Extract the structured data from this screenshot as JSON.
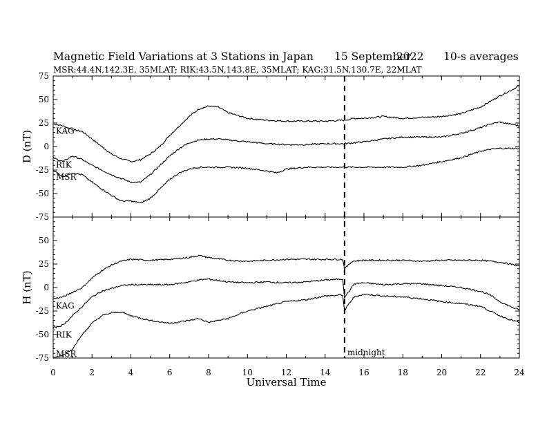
{
  "header": {
    "title": "Magnetic Field Variations at 3 Stations in Japan",
    "date": "15 September",
    "year": "2022",
    "averaging": "10-s averages",
    "stations_line": "MSR:44.4N,142.3E, 35MLAT;  RIK:43.5N,143.8E, 35MLAT;  KAG:31.5N,130.7E, 22MLAT"
  },
  "chart_data": [
    {
      "type": "line",
      "panel": "top",
      "ylabel": "D (nT)",
      "ylim": [
        -75,
        75
      ],
      "yticks": [
        -75,
        -50,
        -25,
        0,
        25,
        50,
        75
      ],
      "xlim": [
        0,
        24
      ],
      "series": [
        {
          "name": "KAG",
          "color": "#000000",
          "x": [
            0,
            0.5,
            1,
            1.5,
            2,
            2.5,
            3,
            3.5,
            4,
            4.5,
            5,
            5.5,
            6,
            6.5,
            7,
            7.5,
            8,
            8.5,
            9,
            9.5,
            10,
            11,
            12,
            13,
            14,
            15,
            15.5,
            16,
            17,
            18,
            19,
            20,
            21,
            22,
            22.5,
            23,
            23.5,
            24
          ],
          "y": [
            24,
            22,
            18,
            16,
            8,
            0,
            -8,
            -13,
            -16,
            -14,
            -8,
            0,
            12,
            22,
            32,
            40,
            43,
            42,
            36,
            33,
            30,
            28,
            27,
            27,
            27,
            28,
            30,
            30,
            32,
            30,
            31,
            32,
            35,
            42,
            48,
            54,
            59,
            65
          ]
        },
        {
          "name": "RIK",
          "color": "#000000",
          "x": [
            0,
            0.5,
            1,
            1.5,
            2,
            2.5,
            3,
            3.5,
            4,
            4.5,
            5,
            5.5,
            6,
            6.5,
            7,
            7.5,
            8,
            8.5,
            9,
            10,
            11,
            12,
            13,
            14,
            15,
            16,
            17,
            18,
            19,
            20,
            21,
            22,
            22.5,
            23,
            23.5,
            24
          ],
          "y": [
            -12,
            -16,
            -10,
            -14,
            -20,
            -25,
            -30,
            -34,
            -38,
            -38,
            -30,
            -20,
            -10,
            -2,
            4,
            7,
            8,
            8,
            7,
            5,
            3,
            2,
            2,
            3,
            3,
            5,
            8,
            10,
            10,
            10,
            14,
            20,
            24,
            26,
            24,
            22
          ]
        },
        {
          "name": "MSR",
          "color": "#000000",
          "x": [
            0,
            0.5,
            1,
            1.5,
            2,
            2.5,
            3,
            3.5,
            4,
            4.5,
            5,
            5.5,
            6,
            6.5,
            7,
            7.5,
            8,
            8.5,
            9,
            10,
            11,
            11.5,
            12,
            13,
            14,
            15,
            16,
            17,
            18,
            19,
            20,
            21,
            22,
            22.5,
            23,
            23.5,
            24
          ],
          "y": [
            -25,
            -32,
            -28,
            -30,
            -38,
            -45,
            -52,
            -58,
            -58,
            -60,
            -55,
            -45,
            -35,
            -28,
            -24,
            -22,
            -22,
            -22,
            -22,
            -23,
            -26,
            -28,
            -24,
            -22,
            -22,
            -22,
            -22,
            -22,
            -22,
            -20,
            -16,
            -12,
            -5,
            -3,
            -2,
            -2,
            -2
          ]
        }
      ]
    },
    {
      "type": "line",
      "panel": "bottom",
      "ylabel": "H (nT)",
      "xlabel": "Universal Time",
      "ylim": [
        -75,
        75
      ],
      "yticks": [
        -75,
        -50,
        -25,
        0,
        25,
        50
      ],
      "xlim": [
        0,
        24
      ],
      "xticks": [
        0,
        2,
        4,
        6,
        8,
        10,
        12,
        14,
        16,
        18,
        20,
        22,
        24
      ],
      "vline": {
        "x": 15,
        "label": "midnight"
      },
      "series": [
        {
          "name": "KAG",
          "color": "#000000",
          "x": [
            0,
            0.5,
            1,
            1.5,
            2,
            2.5,
            3,
            3.5,
            4,
            5,
            6,
            7,
            7.5,
            8,
            9,
            10,
            11,
            12,
            13,
            14,
            14.9,
            15,
            15.2,
            15.4,
            16,
            17,
            18,
            19,
            20,
            21,
            22,
            22.5,
            23,
            23.5,
            24
          ],
          "y": [
            -12,
            -10,
            -5,
            0,
            10,
            18,
            24,
            28,
            30,
            29,
            30,
            32,
            34,
            32,
            29,
            28,
            29,
            30,
            30,
            30,
            30,
            20,
            24,
            28,
            29,
            29,
            29,
            28,
            29,
            29,
            29,
            28,
            27,
            25,
            23
          ]
        },
        {
          "name": "RIK",
          "color": "#000000",
          "x": [
            0,
            0.5,
            1,
            1.5,
            2,
            2.5,
            3,
            3.5,
            4,
            5,
            6,
            7,
            7.5,
            8,
            9,
            10,
            11,
            12,
            13,
            14,
            14.9,
            15,
            15.2,
            15.5,
            16,
            17,
            18,
            19,
            20,
            21,
            22,
            22.5,
            23,
            23.5,
            24
          ],
          "y": [
            -43,
            -40,
            -30,
            -20,
            -10,
            -4,
            -1,
            2,
            3,
            3,
            3,
            6,
            8,
            9,
            6,
            5,
            6,
            5,
            6,
            8,
            9,
            -10,
            -5,
            4,
            5,
            3,
            4,
            4,
            2,
            0,
            -4,
            -8,
            -15,
            -20,
            -24
          ]
        },
        {
          "name": "MSR",
          "color": "#000000",
          "x": [
            0,
            0.5,
            1,
            1.5,
            2,
            2.5,
            3,
            3.5,
            4,
            5,
            6,
            7,
            7.5,
            8,
            9,
            10,
            11,
            12,
            13,
            14,
            14.9,
            15,
            15.2,
            15.5,
            16,
            17,
            18,
            19,
            20,
            21,
            22,
            22.5,
            23,
            23.5,
            24
          ],
          "y": [
            -75,
            -72,
            -65,
            -50,
            -38,
            -30,
            -27,
            -26,
            -30,
            -35,
            -38,
            -35,
            -33,
            -37,
            -33,
            -25,
            -20,
            -15,
            -13,
            -9,
            -8,
            -25,
            -18,
            -10,
            -7,
            -9,
            -10,
            -12,
            -15,
            -17,
            -20,
            -25,
            -30,
            -34,
            -37
          ]
        }
      ]
    }
  ]
}
